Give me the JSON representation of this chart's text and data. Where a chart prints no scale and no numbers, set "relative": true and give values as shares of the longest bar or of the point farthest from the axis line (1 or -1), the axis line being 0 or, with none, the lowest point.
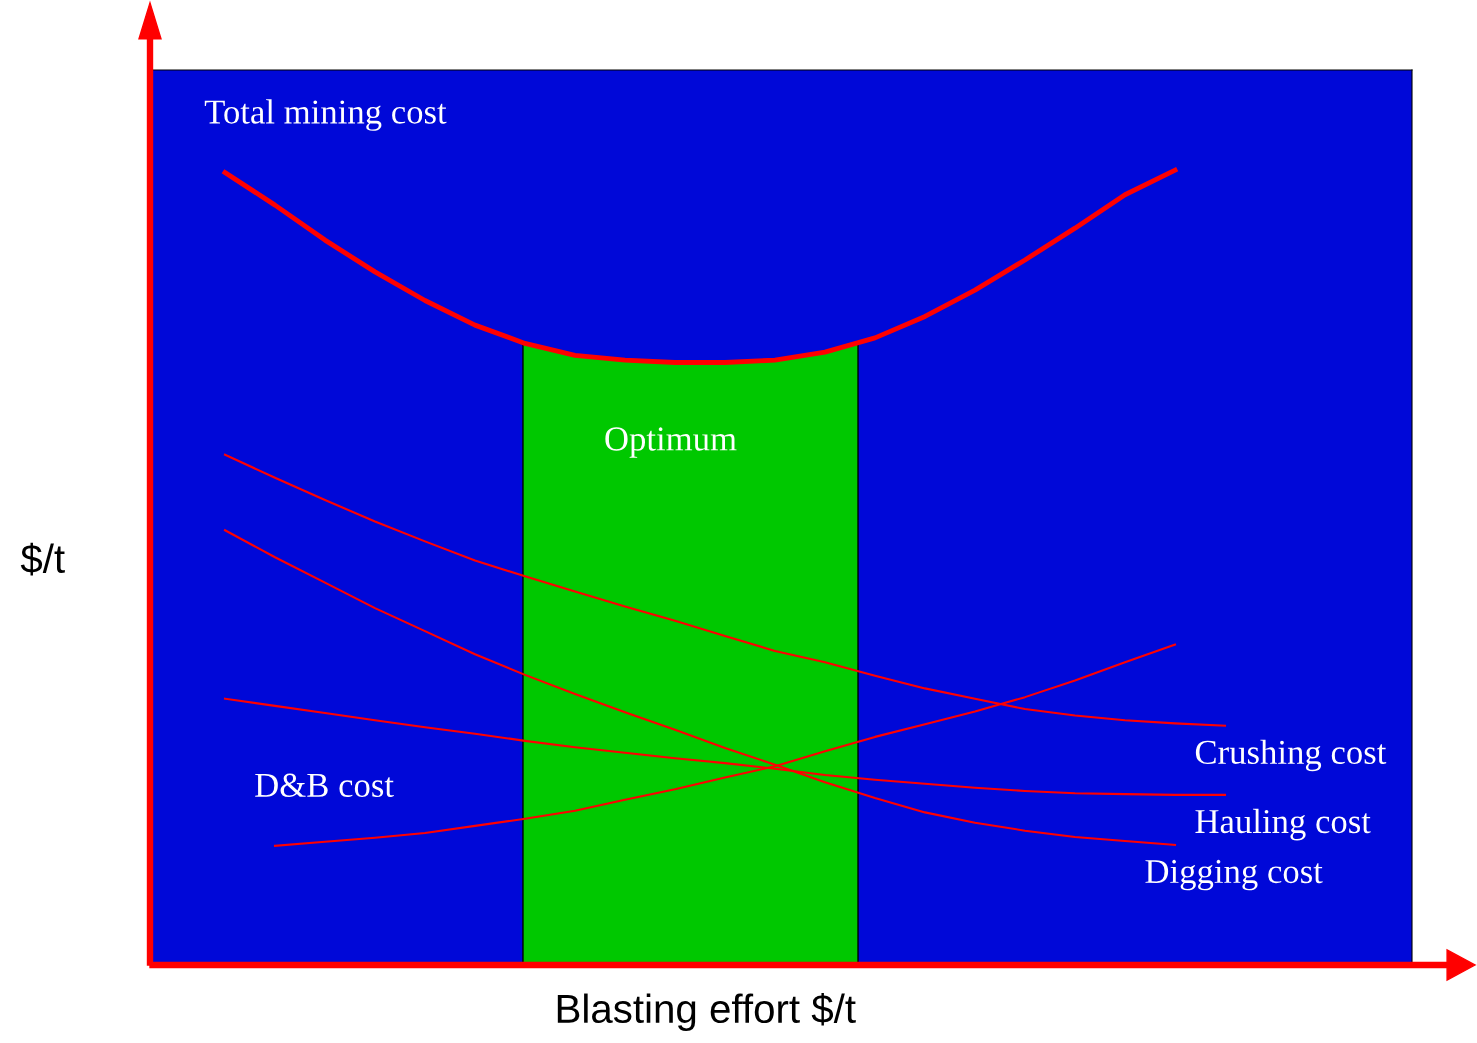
{
  "chart_data": {
    "type": "line",
    "relative": true,
    "xlabel": "Blasting effort $/t",
    "ylabel": "$/t",
    "tick_labels": false,
    "grid": false,
    "legend": false,
    "marker": "none",
    "line_style": "solid",
    "categories": [
      null,
      null,
      null,
      null,
      null,
      null,
      null,
      null,
      null,
      null,
      null,
      null,
      null,
      null,
      null,
      null,
      null,
      null,
      null,
      null,
      null
    ],
    "series": [
      {
        "name": "Total mining cost",
        "color": "#ff0000",
        "values": [
          0.997,
          0.956,
          0.912,
          0.872,
          0.836,
          0.805,
          0.782,
          0.767,
          0.761,
          0.758,
          0.758,
          0.761,
          0.771,
          0.789,
          0.816,
          0.849,
          0.887,
          0.927,
          0.969,
          1.0,
          null
        ]
      },
      {
        "name": "Crushing cost",
        "color": "#ff0000",
        "values": [
          0.642,
          0.613,
          0.585,
          0.558,
          0.533,
          0.509,
          0.489,
          0.47,
          0.451,
          0.433,
          0.414,
          0.395,
          0.381,
          0.364,
          0.348,
          0.335,
          0.322,
          0.314,
          0.308,
          0.304,
          0.301
        ]
      },
      {
        "name": "Hauling cost",
        "color": "#ff0000",
        "values": [
          0.335,
          0.326,
          0.317,
          0.308,
          0.299,
          0.291,
          0.282,
          0.274,
          0.267,
          0.26,
          0.254,
          0.247,
          0.239,
          0.233,
          0.228,
          0.223,
          0.219,
          0.216,
          0.215,
          0.214,
          0.214
        ]
      },
      {
        "name": "Digging cost",
        "color": "#ff0000",
        "values": [
          0.547,
          0.513,
          0.481,
          0.449,
          0.42,
          0.391,
          0.365,
          0.341,
          0.318,
          0.296,
          0.273,
          0.252,
          0.23,
          0.21,
          0.192,
          0.179,
          0.169,
          0.161,
          0.156,
          0.151,
          null
        ]
      },
      {
        "name": "D&B cost",
        "color": "#ff0000",
        "values": [
          null,
          0.15,
          0.155,
          0.16,
          0.166,
          0.175,
          0.184,
          0.194,
          0.208,
          0.221,
          0.236,
          0.25,
          0.269,
          0.287,
          0.303,
          0.319,
          0.337,
          0.358,
          0.381,
          0.403,
          null
        ]
      }
    ],
    "annotations": [
      "Optimum"
    ]
  }
}
